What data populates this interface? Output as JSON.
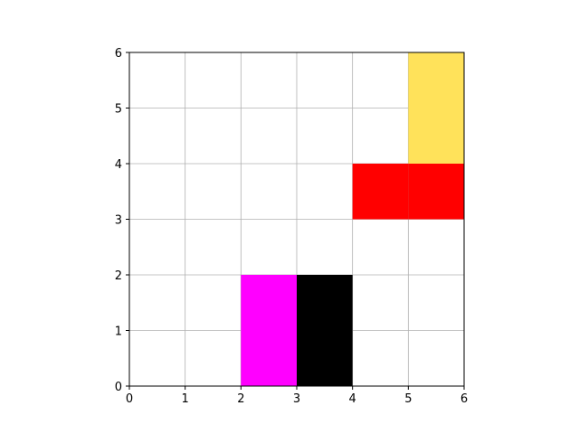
{
  "board": {
    "x_ticks": [
      "0",
      "1",
      "2",
      "3",
      "4",
      "5",
      "6"
    ],
    "y_ticks": [
      "0",
      "1",
      "2",
      "3",
      "4",
      "5",
      "6"
    ],
    "grid": true,
    "xlim": [
      0,
      6
    ],
    "ylim": [
      0,
      6
    ],
    "colors": {
      "background": "#ffffff",
      "grid": "#b0b0b0",
      "axes": "#000000"
    },
    "pieces": [
      {
        "name": "yellow-piece",
        "color": "#ffe25a",
        "x": 5,
        "y": 4,
        "w": 1,
        "h": 2
      },
      {
        "name": "red-piece",
        "color": "#ff0000",
        "x": 4,
        "y": 3,
        "w": 2,
        "h": 1
      },
      {
        "name": "magenta-piece",
        "color": "#ff00ff",
        "x": 2,
        "y": 0,
        "w": 1,
        "h": 2
      },
      {
        "name": "black-piece",
        "color": "#000000",
        "x": 3,
        "y": 0,
        "w": 1,
        "h": 2
      }
    ]
  }
}
